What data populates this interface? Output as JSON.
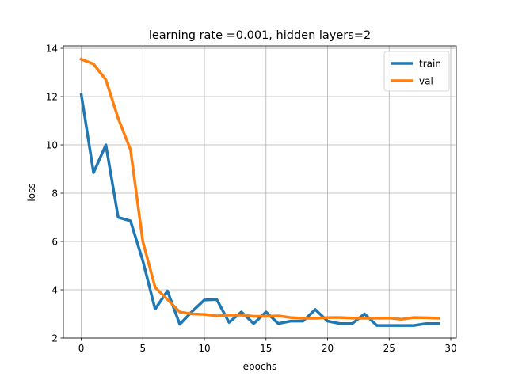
{
  "chart_data": {
    "type": "line",
    "title": "learning rate =0.001, hidden layers=2",
    "xlabel": "epochs",
    "ylabel": "loss",
    "xlim": [
      -1.45,
      30.45
    ],
    "ylim": [
      2,
      14.1
    ],
    "xticks": [
      0,
      5,
      10,
      15,
      20,
      25,
      30
    ],
    "yticks": [
      2,
      4,
      6,
      8,
      10,
      12,
      14
    ],
    "grid": true,
    "legend_position": "top-right",
    "x": [
      0,
      1,
      2,
      3,
      4,
      5,
      6,
      7,
      8,
      9,
      10,
      11,
      12,
      13,
      14,
      15,
      16,
      17,
      18,
      19,
      20,
      21,
      22,
      23,
      24,
      25,
      26,
      27,
      28,
      29
    ],
    "series": [
      {
        "name": "train",
        "color": "#1f77b4",
        "values": [
          12.1,
          8.85,
          10.0,
          7.0,
          6.85,
          5.2,
          3.2,
          3.95,
          2.57,
          3.1,
          3.58,
          3.6,
          2.65,
          3.08,
          2.6,
          3.08,
          2.6,
          2.7,
          2.7,
          3.18,
          2.7,
          2.6,
          2.6,
          3.0,
          2.52,
          2.52,
          2.52,
          2.52,
          2.6,
          2.6
        ]
      },
      {
        "name": "val",
        "color": "#ff7f0e",
        "values": [
          13.55,
          13.35,
          12.7,
          11.1,
          9.8,
          6.0,
          4.1,
          3.6,
          3.08,
          3.0,
          2.98,
          2.92,
          2.95,
          2.95,
          2.9,
          2.9,
          2.92,
          2.85,
          2.82,
          2.82,
          2.85,
          2.85,
          2.83,
          2.82,
          2.82,
          2.83,
          2.78,
          2.85,
          2.84,
          2.82
        ]
      }
    ]
  }
}
